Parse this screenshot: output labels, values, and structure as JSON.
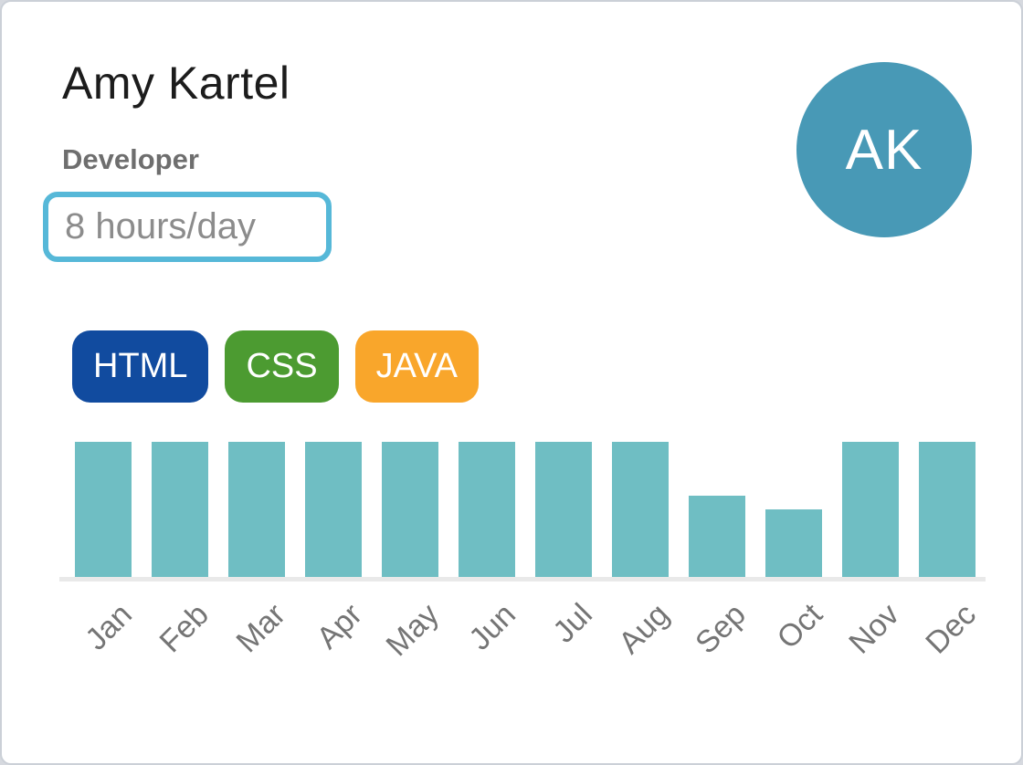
{
  "card": {
    "name": "Amy Kartel",
    "role": "Developer",
    "availability": "8 hours/day",
    "avatar_initials": "AK",
    "colors": {
      "avatar_bg": "#4899b6",
      "availability_border": "#56b8d8",
      "bar": "#6fbec3",
      "baseline": "#e9e9e9",
      "name_text": "#1c1c1c",
      "role_text": "#6e6e6e",
      "availability_text": "#8c8c8c",
      "month_label_text": "#757575"
    },
    "badges": [
      {
        "label": "HTML",
        "color": "#114b9f"
      },
      {
        "label": "CSS",
        "color": "#4c9b31"
      },
      {
        "label": "JAVA",
        "color": "#f9a62b"
      }
    ]
  },
  "chart_data": {
    "type": "bar",
    "categories": [
      "Jan",
      "Feb",
      "Mar",
      "Apr",
      "May",
      "Jun",
      "Jul",
      "Aug",
      "Sep",
      "Oct",
      "Nov",
      "Dec"
    ],
    "values": [
      100,
      100,
      100,
      100,
      100,
      100,
      100,
      100,
      60,
      50,
      100,
      100
    ],
    "title": "",
    "xlabel": "",
    "ylabel": "",
    "ylim": [
      0,
      100
    ],
    "grid": false,
    "legend": false,
    "bar_color": "#6fbec3",
    "tick_label_rotation_deg": -45
  }
}
